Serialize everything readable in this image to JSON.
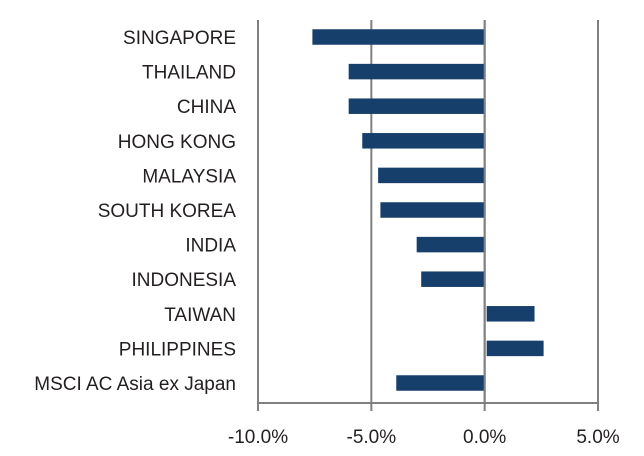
{
  "chart_data": {
    "type": "bar",
    "orientation": "horizontal",
    "title": "",
    "xlabel": "",
    "ylabel": "",
    "categories": [
      "SINGAPORE",
      "THAILAND",
      "CHINA",
      "HONG KONG",
      "MALAYSIA",
      "SOUTH KOREA",
      "INDIA",
      "INDONESIA",
      "TAIWAN",
      "PHILIPPINES",
      "MSCI AC Asia ex Japan"
    ],
    "values": [
      -7.6,
      -6.0,
      -6.0,
      -5.4,
      -4.7,
      -4.6,
      -3.0,
      -2.8,
      2.2,
      2.6,
      -3.9
    ],
    "xlim": [
      -10,
      5
    ],
    "xticks": [
      -10,
      -5,
      0,
      5
    ],
    "xtick_labels": [
      "-10.0%",
      "-5.0%",
      "0.0%",
      "5.0%"
    ],
    "grid": "vertical",
    "legend": "none",
    "colors": {
      "bar": "#16406b",
      "axis": "#808080",
      "text": "#231f20"
    }
  }
}
